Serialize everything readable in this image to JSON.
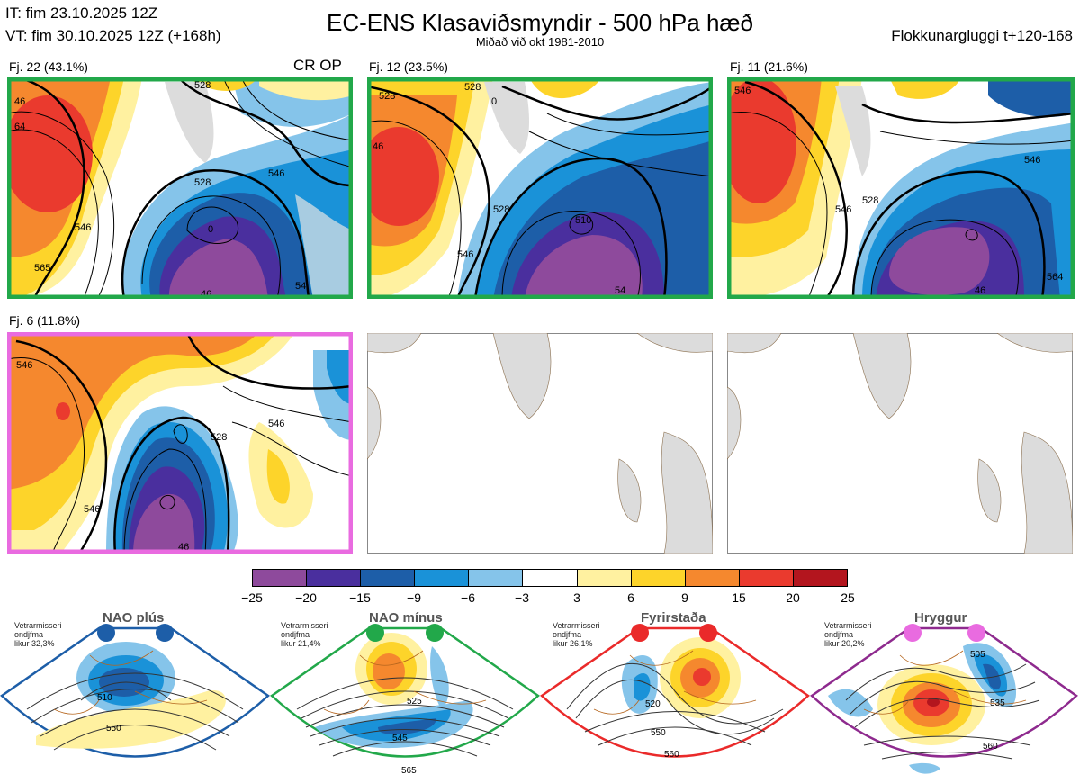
{
  "header": {
    "it_line": "IT: fim 23.10.2025 12Z",
    "vt_line": "VT: fim 30.10.2025 12Z  (+168h)",
    "title": "EC-ENS Klasaviðsmyndir - 500 hPa hæð",
    "subtitle": "Miðað við okt 1981-2010",
    "window": "Flokkunargluggi t+120-168"
  },
  "clusters": [
    {
      "label": "Fj. 22 (43.1%)",
      "extra": "CR OP",
      "frame_color": "#22a84a",
      "contours": [
        "46",
        "64",
        "528",
        "546",
        "528",
        "0",
        "546",
        "565",
        "54",
        "46"
      ]
    },
    {
      "label": "Fj. 12 (23.5%)",
      "frame_color": "#22a84a",
      "contours": [
        "528",
        "528",
        "0",
        "46",
        "510",
        "528",
        "546",
        "54"
      ]
    },
    {
      "label": "Fj. 11 (21.6%)",
      "frame_color": "#22a84a",
      "contours": [
        "546",
        "546",
        "528",
        "546",
        "564",
        "46"
      ]
    },
    {
      "label": "Fj. 6 (11.8%)",
      "frame_color": "#e96be0",
      "contours": [
        "546",
        "528",
        "546",
        "546",
        "46"
      ]
    }
  ],
  "colorbar": {
    "colors": [
      "#8e4a9c",
      "#4a2f9e",
      "#1d5ea8",
      "#1a92d8",
      "#85c4ea",
      "#ffffff",
      "#fff1a0",
      "#fdd42a",
      "#f5882e",
      "#ea3a2e",
      "#b3151e"
    ],
    "ticks": [
      "−25",
      "−20",
      "−15",
      "−9",
      "−6",
      "−3",
      "3",
      "6",
      "9",
      "15",
      "20",
      "25"
    ]
  },
  "regimes": [
    {
      "name": "NAO plús",
      "season": "Vetrarmisseri",
      "months": "ondjfma",
      "likelihood": "likur 32,3%",
      "color": "#1d5ea8",
      "contour_labels": [
        "510",
        "550"
      ]
    },
    {
      "name": "NAO mínus",
      "season": "Vetrarmisseri",
      "months": "ondjfma",
      "likelihood": "likur 21,4%",
      "color": "#22a84a",
      "contour_labels": [
        "525",
        "545",
        "565"
      ]
    },
    {
      "name": "Fyrirstaða",
      "season": "Vetrarmisseri",
      "months": "ondjfma",
      "likelihood": "likur 26,1%",
      "color": "#ea2a2a",
      "contour_labels": [
        "520",
        "550",
        "560"
      ]
    },
    {
      "name": "Hryggur",
      "season": "Vetrarmisseri",
      "months": "ondjfma",
      "likelihood": "likur 20,2%",
      "color": "#e96be0",
      "contour_labels": [
        "505",
        "535",
        "560"
      ]
    }
  ]
}
